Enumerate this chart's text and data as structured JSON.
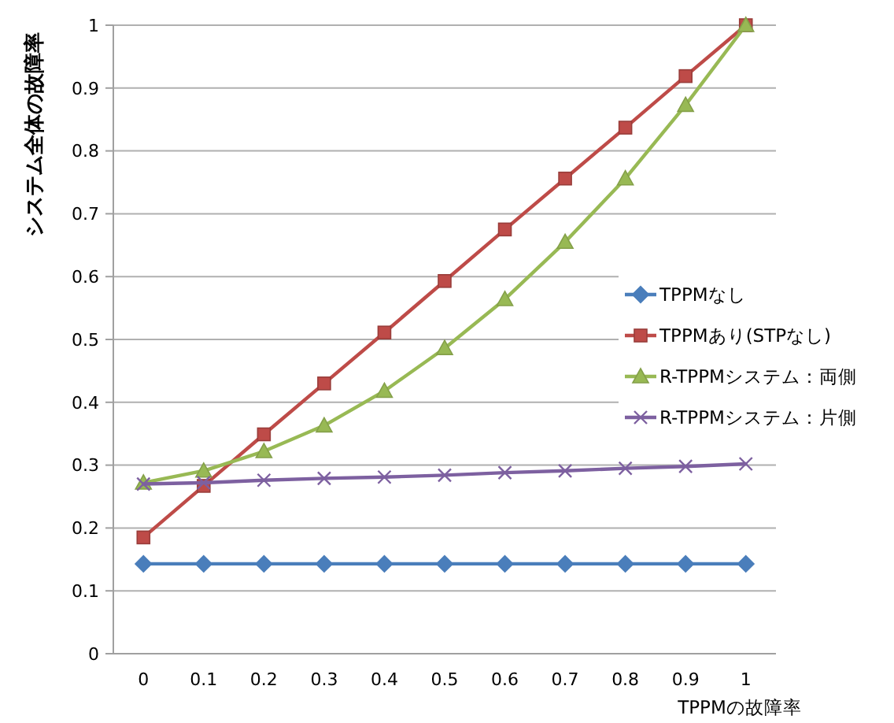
{
  "chart_data": {
    "type": "line",
    "xlabel": "TPPMの故障率",
    "ylabel": "システム全体の故障率",
    "categories": [
      "0",
      "0.1",
      "0.2",
      "0.3",
      "0.4",
      "0.5",
      "0.6",
      "0.7",
      "0.8",
      "0.9",
      "1"
    ],
    "ylim": [
      0,
      1
    ],
    "yticks": [
      0,
      0.1,
      0.2,
      0.3,
      0.4,
      0.5,
      0.6,
      0.7,
      0.8,
      0.9,
      1
    ],
    "grid": "y",
    "legend": "right",
    "series": [
      {
        "name": "TPPMなし",
        "color": "#4a7ebb",
        "marker": "diamond",
        "values": [
          0.143,
          0.143,
          0.143,
          0.143,
          0.143,
          0.143,
          0.143,
          0.143,
          0.143,
          0.143,
          0.143
        ]
      },
      {
        "name": "TPPMあり(STPなし)",
        "color": "#be4b48",
        "marker": "square",
        "values": [
          0.185,
          0.267,
          0.349,
          0.43,
          0.511,
          0.593,
          0.675,
          0.756,
          0.837,
          0.919,
          1
        ]
      },
      {
        "name": "R-TPPMシステム：両側",
        "color": "#98b954",
        "marker": "triangle",
        "values": [
          0.272,
          0.291,
          0.322,
          0.363,
          0.418,
          0.486,
          0.564,
          0.655,
          0.756,
          0.873,
          1
        ]
      },
      {
        "name": "R-TPPMシステム：片側",
        "color": "#7d60a0",
        "marker": "cross",
        "values": [
          0.27,
          0.272,
          0.276,
          0.279,
          0.281,
          0.284,
          0.288,
          0.291,
          0.295,
          0.298,
          0.302
        ]
      }
    ]
  }
}
